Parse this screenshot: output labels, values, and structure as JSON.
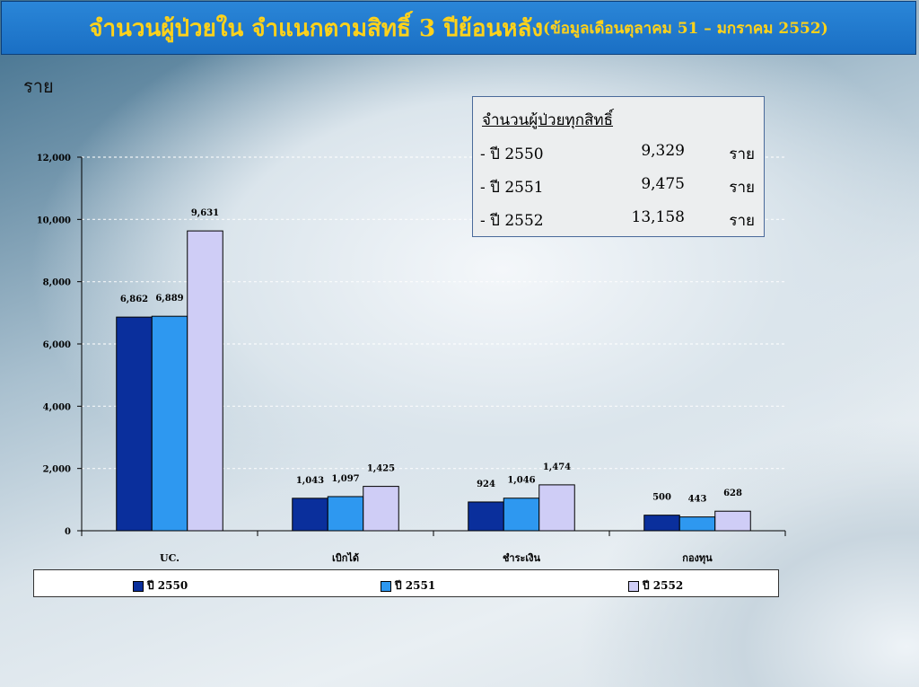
{
  "header": {
    "title": "จำนวนผู้ป่วยใน จำแนกตามสิทธิ์ 3 ปีย้อนหลัง",
    "subtitle": "(ข้อมูลเดือนตุลาคม 51 – มกราคม 2552)"
  },
  "unit_label": "ราย",
  "summary": {
    "title": "จำนวนผู้ป่วยทุกสิทธิ์",
    "rows": [
      {
        "label": "- ปี 2550",
        "value": "9,329",
        "unit": "ราย"
      },
      {
        "label": "- ปี 2551",
        "value": "9,475",
        "unit": "ราย"
      },
      {
        "label": "- ปี 2552",
        "value": "13,158",
        "unit": "ราย"
      }
    ]
  },
  "colors": {
    "title_bar": "#1f78cc",
    "title_text": "#ffd21a",
    "series": [
      "#0a2f9c",
      "#2e98f0",
      "#cfcdf6"
    ]
  },
  "chart_data": {
    "type": "bar",
    "categories": [
      "UC.",
      "เบิกได้",
      "ชำระเงิน",
      "กองทุน"
    ],
    "series": [
      {
        "name": "ปี 2550",
        "values": [
          6862,
          1043,
          924,
          500
        ]
      },
      {
        "name": "ปี 2551",
        "values": [
          6889,
          1097,
          1046,
          443
        ]
      },
      {
        "name": "ปี 2552",
        "values": [
          9631,
          1425,
          1474,
          628
        ]
      }
    ],
    "data_labels": [
      [
        "6,862",
        "1,043",
        "924",
        "500"
      ],
      [
        "6,889",
        "1,097",
        "1,046",
        "443"
      ],
      [
        "9,631",
        "1,425",
        "1,474",
        "628"
      ]
    ],
    "yticks": [
      "0",
      "2,000",
      "4,000",
      "6,000",
      "8,000",
      "10,000",
      "12,000"
    ],
    "ylim": [
      0,
      12000
    ],
    "grid": true,
    "legend_position": "bottom"
  }
}
